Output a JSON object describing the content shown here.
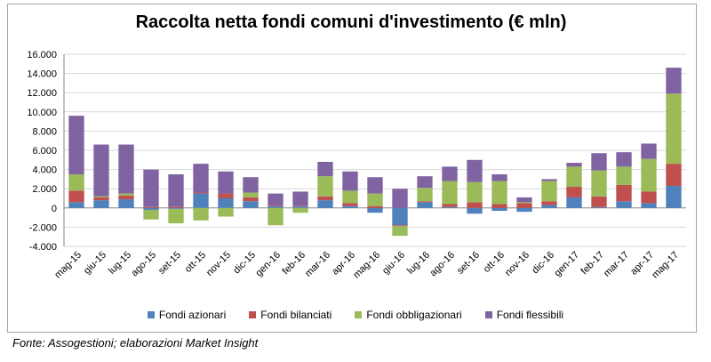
{
  "chart_data": {
    "type": "bar",
    "stacked": true,
    "title": "Raccolta netta fondi comuni d'investimento (€ mln)",
    "xlabel": "",
    "ylabel": "",
    "ylim": [
      -4000,
      16000
    ],
    "yticks": [
      -4000,
      -2000,
      0,
      2000,
      4000,
      6000,
      8000,
      10000,
      12000,
      14000,
      16000
    ],
    "ytick_labels": [
      "-4.000",
      "-2.000",
      "0",
      "2.000",
      "4.000",
      "6.000",
      "8.000",
      "10.000",
      "12.000",
      "14.000",
      "16.000"
    ],
    "categories": [
      "mag-15",
      "giu-15",
      "lug-15",
      "ago-15",
      "set-15",
      "ott-15",
      "nov-15",
      "dic-15",
      "gen-16",
      "feb-16",
      "mar-16",
      "apr-16",
      "mag-16",
      "giu-16",
      "lug-16",
      "ago-16",
      "set-16",
      "ott-16",
      "nov-16",
      "dic-16",
      "gen-17",
      "feb-17",
      "mar-17",
      "apr-17",
      "mag-17"
    ],
    "series": [
      {
        "name": "Fondi azionari",
        "color": "#4f81bd",
        "values": [
          600,
          800,
          900,
          -200,
          -100,
          1500,
          1000,
          700,
          200,
          150,
          800,
          200,
          -500,
          -1800,
          600,
          100,
          -600,
          -300,
          -400,
          300,
          1100,
          100,
          700,
          500,
          2300
        ]
      },
      {
        "name": "Fondi bilanciati",
        "color": "#c0504d",
        "values": [
          1200,
          300,
          400,
          100,
          100,
          100,
          500,
          400,
          100,
          50,
          400,
          300,
          200,
          -100,
          100,
          300,
          600,
          400,
          500,
          400,
          1100,
          1100,
          1700,
          1200,
          2300
        ]
      },
      {
        "name": "Fondi obbligazionari",
        "color": "#9bbb59",
        "values": [
          1700,
          100,
          200,
          -1000,
          -1500,
          -1300,
          -900,
          500,
          -1800,
          -500,
          2100,
          1300,
          1300,
          -1000,
          1400,
          2400,
          2100,
          2400,
          100,
          2100,
          2100,
          2700,
          1900,
          3400,
          7300
        ]
      },
      {
        "name": "Fondi flessibili",
        "color": "#8064a2",
        "values": [
          6100,
          5400,
          5100,
          3900,
          3400,
          3000,
          2300,
          1600,
          1200,
          1500,
          1500,
          2000,
          1700,
          2000,
          1200,
          1500,
          2300,
          700,
          500,
          200,
          400,
          1800,
          1500,
          1600,
          2700
        ]
      }
    ]
  },
  "source": "Fonte: Assogestioni; elaborazioni Market Insight"
}
